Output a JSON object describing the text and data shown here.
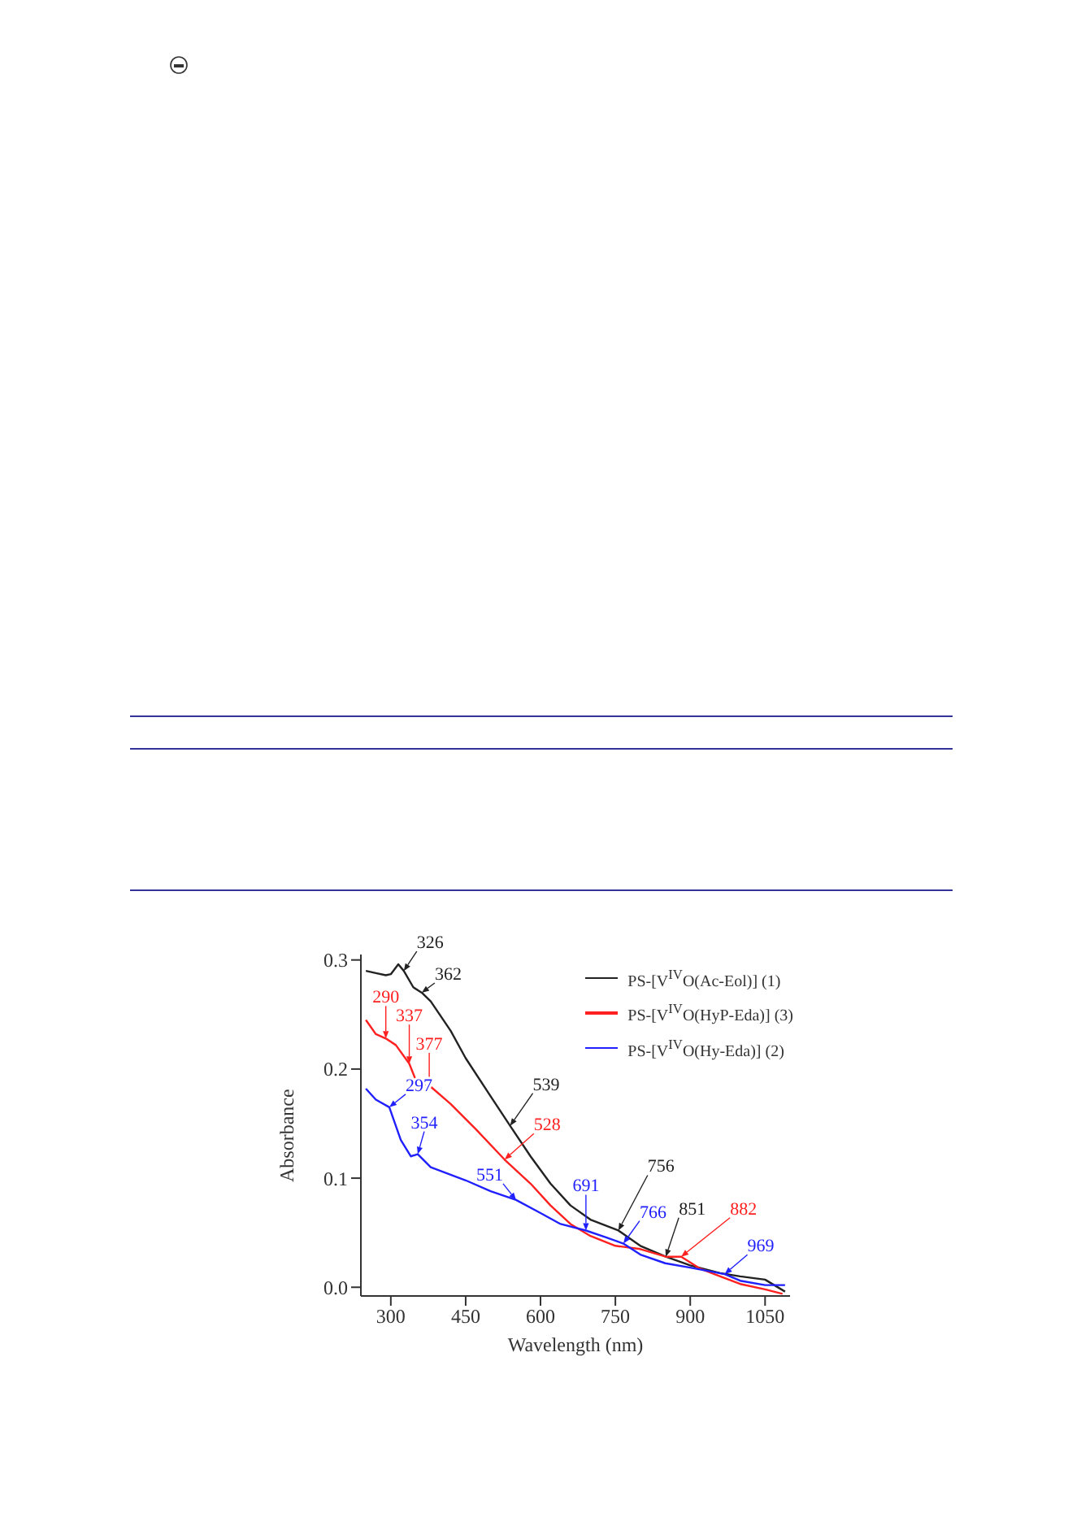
{
  "chart_data": {
    "type": "line",
    "xlabel": "Wavelength (nm)",
    "ylabel": "Absorbance",
    "xlim": [
      240,
      1100
    ],
    "xticks": [
      300,
      450,
      600,
      750,
      900,
      1050
    ],
    "ylim": [
      -0.008,
      0.305
    ],
    "yticks": [
      {
        "value": 0,
        "label": "0.0"
      },
      0.1,
      0.2,
      0.3
    ],
    "legend": "top right",
    "grid": false,
    "marker": "none",
    "line_style": "solid",
    "series": [
      {
        "name": "PS-[V$^{IV}$O(Ac-Eol)] (1)",
        "color": "#222222",
        "x": [
          250,
          270,
          290,
          300,
          315,
          326,
          345,
          362,
          380,
          420,
          450,
          500,
          539,
          580,
          620,
          660,
          700,
          756,
          800,
          851,
          900,
          960,
          1000,
          1050,
          1090
        ],
        "values": [
          0.29,
          0.288,
          0.286,
          0.287,
          0.296,
          0.29,
          0.275,
          0.27,
          0.262,
          0.235,
          0.21,
          0.175,
          0.148,
          0.12,
          0.095,
          0.075,
          0.062,
          0.052,
          0.038,
          0.028,
          0.02,
          0.013,
          0.01,
          0.007,
          -0.004
        ]
      },
      {
        "name": "PS-[V$^{IV}$O(HyP-Eda)] (3)",
        "color": "#ff2020",
        "x": [
          250,
          270,
          290,
          310,
          337,
          350,
          377,
          420,
          470,
          528,
          580,
          620,
          660,
          700,
          750,
          800,
          851,
          882,
          920,
          960,
          1000,
          1050,
          1085
        ],
        "values": [
          0.245,
          0.232,
          0.228,
          0.222,
          0.205,
          0.19,
          0.185,
          0.168,
          0.145,
          0.117,
          0.095,
          0.075,
          0.058,
          0.047,
          0.038,
          0.035,
          0.028,
          0.028,
          0.017,
          0.01,
          0.003,
          -0.002,
          -0.006
        ]
      },
      {
        "name": "PS-[V$^{IV}$O(Hy-Eda)] (2)",
        "color": "#2020ff",
        "x": [
          250,
          270,
          297,
          320,
          340,
          354,
          380,
          450,
          500,
          551,
          600,
          640,
          691,
          730,
          766,
          800,
          850,
          900,
          969,
          1000,
          1050,
          1090
        ],
        "values": [
          0.182,
          0.172,
          0.165,
          0.135,
          0.12,
          0.122,
          0.11,
          0.098,
          0.088,
          0.08,
          0.068,
          0.058,
          0.052,
          0.046,
          0.04,
          0.03,
          0.022,
          0.018,
          0.012,
          0.006,
          0.002,
          0.002
        ]
      }
    ],
    "annotations": [
      {
        "text": "326",
        "x": 326,
        "y": 0.29
      },
      {
        "text": "362",
        "x": 362,
        "y": 0.27
      },
      {
        "text": "539",
        "x": 539,
        "y": 0.148
      },
      {
        "text": "756",
        "x": 756,
        "y": 0.052
      },
      {
        "text": "851",
        "x": 851,
        "y": 0.028
      },
      {
        "text": "290",
        "x": 290,
        "y": 0.228
      },
      {
        "text": "337",
        "x": 337,
        "y": 0.205
      },
      {
        "text": "377",
        "x": 377,
        "y": 0.185
      },
      {
        "text": "528",
        "x": 528,
        "y": 0.117
      },
      {
        "text": "882",
        "x": 882,
        "y": 0.028
      },
      {
        "text": "297",
        "x": 297,
        "y": 0.165
      },
      {
        "text": "354",
        "x": 354,
        "y": 0.122
      },
      {
        "text": "551",
        "x": 551,
        "y": 0.08
      },
      {
        "text": "691",
        "x": 691,
        "y": 0.052
      },
      {
        "text": "766",
        "x": 766,
        "y": 0.04
      },
      {
        "text": "969",
        "x": 969,
        "y": 0.012
      }
    ]
  }
}
